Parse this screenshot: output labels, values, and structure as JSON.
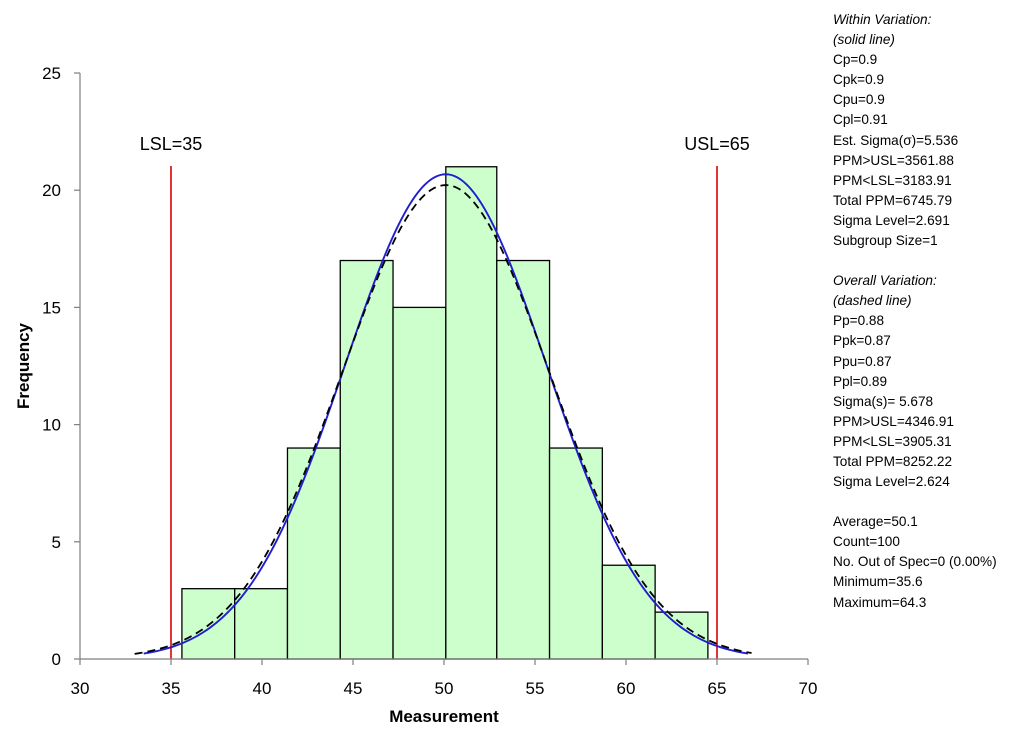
{
  "chart_data": {
    "type": "bar",
    "title": "",
    "xlabel": "Measurement",
    "ylabel": "Frequency",
    "xlim": [
      30,
      70
    ],
    "ylim": [
      0,
      25
    ],
    "xticks": [
      30,
      35,
      40,
      45,
      50,
      55,
      60,
      65,
      70
    ],
    "yticks": [
      0,
      5,
      10,
      15,
      20,
      25
    ],
    "bins": [
      {
        "start": 35.6,
        "end": 38.5,
        "count": 3
      },
      {
        "start": 38.5,
        "end": 41.4,
        "count": 3
      },
      {
        "start": 41.4,
        "end": 44.3,
        "count": 9
      },
      {
        "start": 44.3,
        "end": 47.2,
        "count": 17
      },
      {
        "start": 47.2,
        "end": 50.1,
        "count": 15
      },
      {
        "start": 50.1,
        "end": 52.9,
        "count": 21
      },
      {
        "start": 52.9,
        "end": 55.8,
        "count": 17
      },
      {
        "start": 55.8,
        "end": 58.7,
        "count": 9
      },
      {
        "start": 58.7,
        "end": 61.6,
        "count": 4
      },
      {
        "start": 61.6,
        "end": 64.5,
        "count": 2
      }
    ],
    "bar_color": "#ccffcc",
    "spec_limits": [
      {
        "name": "LSL",
        "label": "LSL=35",
        "value": 35
      },
      {
        "name": "USL",
        "label": "USL=65",
        "value": 65
      }
    ],
    "spec_color": "#dd0000",
    "curves": [
      {
        "name": "Within Variation",
        "style": "solid",
        "color": "#1f1fd0",
        "mean": 50.1,
        "sigma": 5.536,
        "peak": 20.68,
        "range": [
          33.5,
          66.7
        ]
      },
      {
        "name": "Overall Variation",
        "style": "dashed",
        "color": "#000000",
        "mean": 50.1,
        "sigma": 5.678,
        "peak": 20.22,
        "range": [
          33.0,
          66.9
        ]
      }
    ]
  },
  "stats": {
    "within_header_1": "Within Variation:",
    "within_header_2": "(solid line)",
    "within": [
      "Cp=0.9",
      "Cpk=0.9",
      "Cpu=0.9",
      "Cpl=0.91",
      "Est. Sigma(σ)=5.536",
      "PPM>USL=3561.88",
      "PPM<LSL=3183.91",
      "Total PPM=6745.79",
      "Sigma Level=2.691",
      "Subgroup Size=1"
    ],
    "overall_header_1": "Overall Variation:",
    "overall_header_2": "(dashed line)",
    "overall": [
      "Pp=0.88",
      "Ppk=0.87",
      "Ppu=0.87",
      "Ppl=0.89",
      "Sigma(s)= 5.678",
      "PPM>USL=4346.91",
      "PPM<LSL=3905.31",
      "Total PPM=8252.22",
      "Sigma Level=2.624"
    ],
    "summary": [
      "Average=50.1",
      "Count=100",
      "No. Out of Spec=0 (0.00%)",
      "Minimum=35.6",
      "Maximum=64.3"
    ]
  }
}
